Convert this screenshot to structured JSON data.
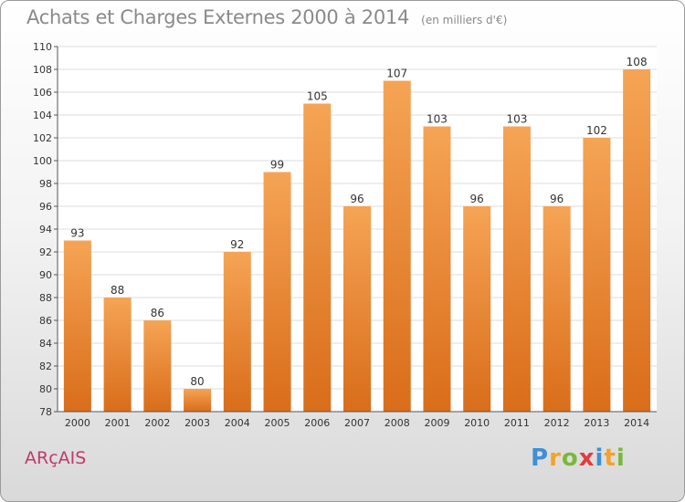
{
  "header": {
    "title": "Achats et Charges Externes 2000 à 2014",
    "unit": "(en milliers d'€)"
  },
  "footer": {
    "commune": "ARçAIS",
    "logo_text": "Proxiti",
    "logo_letters": [
      {
        "ch": "P",
        "color": "#3f8fd6"
      },
      {
        "ch": "r",
        "color": "#f2a32a"
      },
      {
        "ch": "o",
        "color": "#7ab83a"
      },
      {
        "ch": "x",
        "color": "#e23c3c"
      },
      {
        "ch": "i",
        "color": "#3f8fd6"
      },
      {
        "ch": "t",
        "color": "#f2a32a"
      },
      {
        "ch": "i",
        "color": "#7ab83a"
      }
    ]
  },
  "colors": {
    "bar_top": "#f5a455",
    "bar_bottom": "#d96d1a",
    "axis": "#555555",
    "grid": "#dddddd",
    "text": "#333333"
  },
  "chart_data": {
    "type": "bar",
    "title": "Achats et Charges Externes 2000 à 2014",
    "xlabel": "",
    "ylabel": "",
    "ylim": [
      78,
      110
    ],
    "yticks": [
      78,
      80,
      82,
      84,
      86,
      88,
      90,
      92,
      94,
      96,
      98,
      100,
      102,
      104,
      106,
      108,
      110
    ],
    "grid": true,
    "categories": [
      "2000",
      "2001",
      "2002",
      "2003",
      "2004",
      "2005",
      "2006",
      "2007",
      "2008",
      "2009",
      "2010",
      "2011",
      "2012",
      "2013",
      "2014"
    ],
    "values": [
      93,
      88,
      86,
      80,
      92,
      99,
      105,
      96,
      107,
      103,
      96,
      103,
      96,
      102,
      108
    ]
  }
}
